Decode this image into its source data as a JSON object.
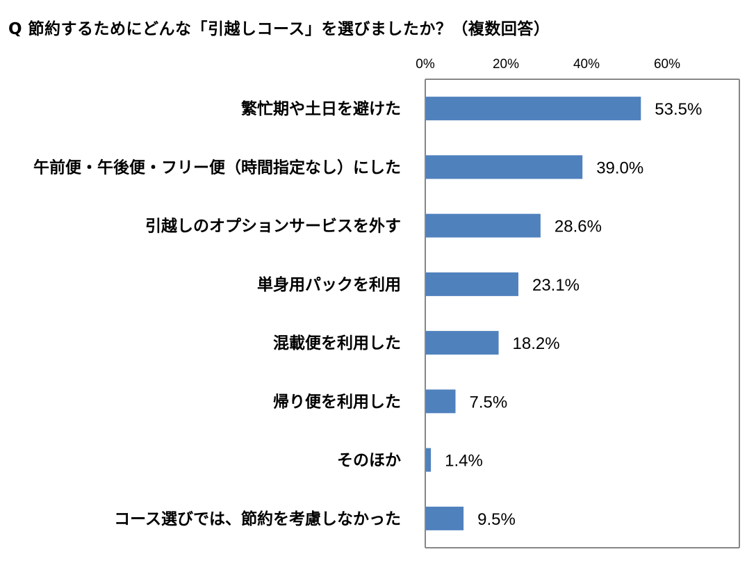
{
  "title": "Q 節約するためにどんな「引越しコース」を選びましたか？（複数回答）",
  "chart_data": {
    "type": "bar",
    "orientation": "horizontal",
    "title": "Q 節約するためにどんな「引越しコース」を選びましたか？（複数回答）",
    "categories": [
      "繁忙期や土日を避けた",
      "午前便・午後便・フリー便（時間指定なし）にした",
      "引越しのオプションサービスを外す",
      "単身用パックを利用",
      "混載便を利用した",
      "帰り便を利用した",
      "そのほか",
      "コース選びでは、節約を考慮しなかった"
    ],
    "values": [
      53.5,
      39.0,
      28.6,
      23.1,
      18.2,
      7.5,
      1.4,
      9.5
    ],
    "value_labels": [
      "53.5%",
      "39.0%",
      "28.6%",
      "23.1%",
      "18.2%",
      "7.5%",
      "1.4%",
      "9.5%"
    ],
    "xticks": [
      0,
      20,
      40,
      60
    ],
    "xtick_labels": [
      "0%",
      "20%",
      "40%",
      "60%"
    ],
    "xlim": [
      0,
      80
    ],
    "axis_position": "top",
    "grid": false,
    "legend": "none",
    "bar_color": "#4f81bd"
  }
}
